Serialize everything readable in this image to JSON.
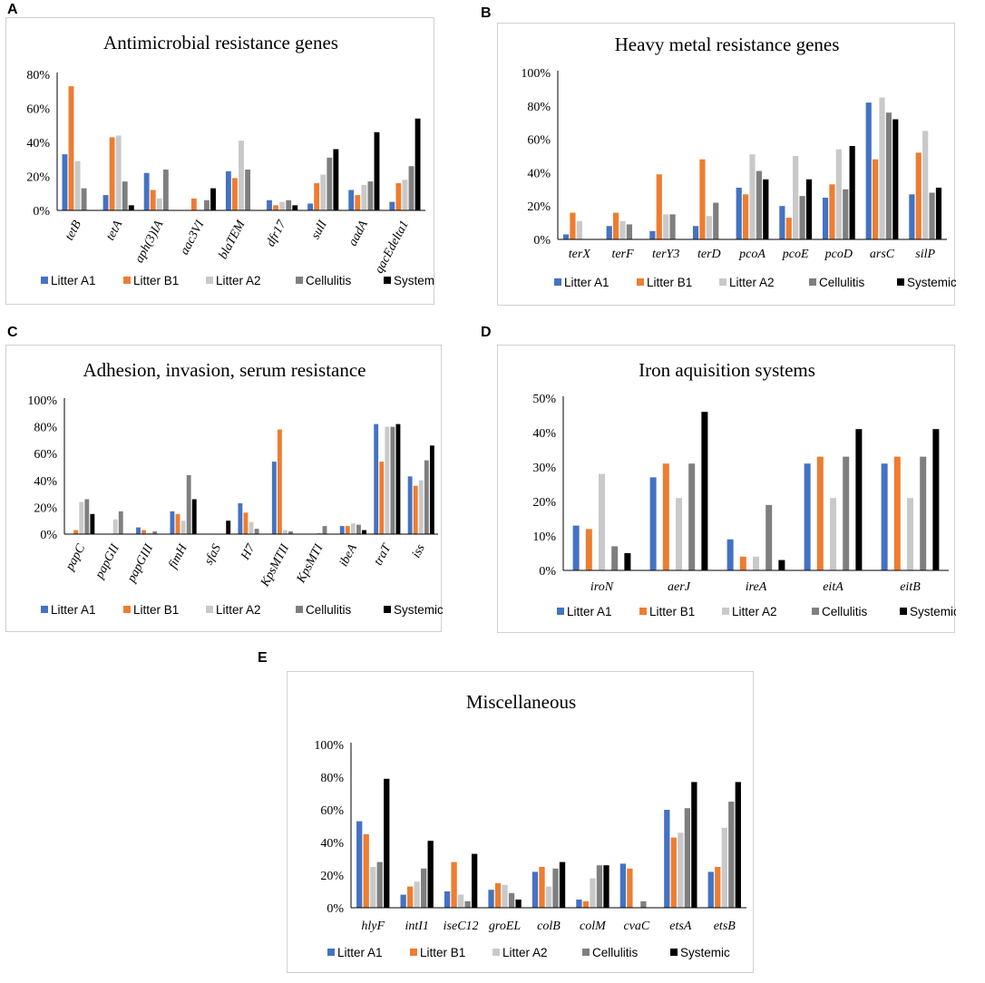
{
  "colors": {
    "Litter A1": "#4472C4",
    "Litter B1": "#ED7D31",
    "Litter A2": "#C9C9C9",
    "Cellulitis": "#7F7F7F",
    "Systemic": "#000000"
  },
  "panel_labels": [
    "A",
    "B",
    "C",
    "D",
    "E"
  ],
  "chart_data": [
    {
      "panel": "A",
      "type": "bar",
      "title": "Antimicrobial resistance genes",
      "ylim": [
        0,
        80
      ],
      "yticks": [
        "0%",
        "20%",
        "40%",
        "60%",
        "80%"
      ],
      "ytick_values": [
        0,
        20,
        40,
        60,
        80
      ],
      "categories": [
        "tetB",
        "tetA",
        "aph(3)IA",
        "aac3VI",
        "blaTEM",
        "dfr17",
        "sulI",
        "aadA",
        "qacEdelta1"
      ],
      "xlabel_rotated": true,
      "series": [
        {
          "name": "Litter A1",
          "values": [
            33,
            9,
            22,
            0,
            23,
            6,
            4,
            12,
            5
          ]
        },
        {
          "name": "Litter B1",
          "values": [
            73,
            43,
            12,
            7,
            19,
            3,
            16,
            9,
            16
          ]
        },
        {
          "name": "Litter A2",
          "values": [
            29,
            44,
            7,
            0,
            41,
            5,
            21,
            15,
            18
          ]
        },
        {
          "name": "Cellulitis",
          "values": [
            13,
            17,
            24,
            6,
            24,
            6,
            31,
            17,
            26
          ]
        },
        {
          "name": "Systemic",
          "values": [
            0,
            3,
            0,
            13,
            0,
            3,
            36,
            46,
            54
          ]
        }
      ],
      "legend": [
        "Litter A1",
        "Litter B1",
        "Litter A2",
        "Cellulitis",
        "Systemic"
      ]
    },
    {
      "panel": "B",
      "type": "bar",
      "title": "Heavy metal resistance genes",
      "ylim": [
        0,
        100
      ],
      "yticks": [
        "0%",
        "20%",
        "40%",
        "60%",
        "80%",
        "100%"
      ],
      "ytick_values": [
        0,
        20,
        40,
        60,
        80,
        100
      ],
      "categories": [
        "terX",
        "terF",
        "terY3",
        "terD",
        "pcoA",
        "pcoE",
        "pcoD",
        "arsC",
        "silP"
      ],
      "xlabel_rotated": false,
      "series": [
        {
          "name": "Litter A1",
          "values": [
            3,
            8,
            5,
            8,
            31,
            20,
            25,
            82,
            27
          ]
        },
        {
          "name": "Litter B1",
          "values": [
            16,
            16,
            39,
            48,
            27,
            13,
            33,
            48,
            52
          ]
        },
        {
          "name": "Litter A2",
          "values": [
            11,
            11,
            15,
            14,
            51,
            50,
            54,
            85,
            65
          ]
        },
        {
          "name": "Cellulitis",
          "values": [
            0,
            9,
            15,
            22,
            41,
            26,
            30,
            76,
            28
          ]
        },
        {
          "name": "Systemic",
          "values": [
            0,
            0,
            0,
            0,
            36,
            36,
            56,
            72,
            31
          ]
        }
      ],
      "legend": [
        "Litter A1",
        "Litter B1",
        "Litter A2",
        "Cellulitis",
        "Systemic"
      ]
    },
    {
      "panel": "C",
      "type": "bar",
      "title": "Adhesion, invasion, serum resistance",
      "ylim": [
        0,
        100
      ],
      "yticks": [
        "0%",
        "20%",
        "40%",
        "60%",
        "80%",
        "100%"
      ],
      "ytick_values": [
        0,
        20,
        40,
        60,
        80,
        100
      ],
      "categories": [
        "papC",
        "papGII",
        "papGIII",
        "fimH",
        "sfaS",
        "H7",
        "KpsMTII",
        "KpsMTI",
        "ibeA",
        "traT",
        "iss"
      ],
      "xlabel_rotated": true,
      "series": [
        {
          "name": "Litter A1",
          "values": [
            0,
            0,
            5,
            17,
            0,
            23,
            54,
            0,
            6,
            82,
            43
          ]
        },
        {
          "name": "Litter B1",
          "values": [
            3,
            0,
            3,
            15,
            0,
            16,
            78,
            0,
            6,
            54,
            36
          ]
        },
        {
          "name": "Litter A2",
          "values": [
            24,
            11,
            1,
            10,
            0,
            9,
            3,
            1,
            8,
            80,
            40
          ]
        },
        {
          "name": "Cellulitis",
          "values": [
            26,
            17,
            2,
            44,
            0,
            4,
            2,
            6,
            7,
            80,
            55
          ]
        },
        {
          "name": "Systemic",
          "values": [
            15,
            0,
            0,
            26,
            10,
            0,
            0,
            0,
            3,
            82,
            66
          ]
        }
      ],
      "legend": [
        "Litter A1",
        "Litter B1",
        "Litter A2",
        "Cellulitis",
        "Systemic"
      ]
    },
    {
      "panel": "D",
      "type": "bar",
      "title": "Iron aquisition systems",
      "ylim": [
        0,
        50
      ],
      "yticks": [
        "0%",
        "10%",
        "20%",
        "30%",
        "40%",
        "50%"
      ],
      "ytick_values": [
        0,
        10,
        20,
        30,
        40,
        50
      ],
      "categories": [
        "iroN",
        "aerJ",
        "ireA",
        "eitA",
        "eitB"
      ],
      "xlabel_rotated": false,
      "series": [
        {
          "name": "Litter A1",
          "values": [
            13,
            27,
            9,
            31,
            31
          ]
        },
        {
          "name": "Litter B1",
          "values": [
            12,
            31,
            4,
            33,
            33
          ]
        },
        {
          "name": "Litter A2",
          "values": [
            28,
            21,
            4,
            21,
            21
          ]
        },
        {
          "name": "Cellulitis",
          "values": [
            7,
            31,
            19,
            33,
            33
          ]
        },
        {
          "name": "Systemic",
          "values": [
            5,
            46,
            3,
            41,
            41
          ]
        }
      ],
      "legend": [
        "Litter A1",
        "Litter B1",
        "Litter A2",
        "Cellulitis",
        "Systemic"
      ]
    },
    {
      "panel": "E",
      "type": "bar",
      "title": "Miscellaneous",
      "ylim": [
        0,
        100
      ],
      "yticks": [
        "0%",
        "20%",
        "40%",
        "60%",
        "80%",
        "100%"
      ],
      "ytick_values": [
        0,
        20,
        40,
        60,
        80,
        100
      ],
      "categories": [
        "hlyF",
        "intI1",
        "iseC12",
        "groEL",
        "colB",
        "colM",
        "cvaC",
        "etsA",
        "etsB"
      ],
      "xlabel_rotated": false,
      "series": [
        {
          "name": "Litter A1",
          "values": [
            53,
            8,
            10,
            11,
            22,
            5,
            27,
            60,
            22
          ]
        },
        {
          "name": "Litter B1",
          "values": [
            45,
            13,
            28,
            15,
            25,
            4,
            24,
            43,
            25
          ]
        },
        {
          "name": "Litter A2",
          "values": [
            25,
            16,
            8,
            14,
            13,
            18,
            0,
            46,
            49
          ]
        },
        {
          "name": "Cellulitis",
          "values": [
            28,
            24,
            4,
            9,
            24,
            26,
            4,
            61,
            65
          ]
        },
        {
          "name": "Systemic",
          "values": [
            79,
            41,
            33,
            5,
            28,
            26,
            0,
            77,
            77
          ]
        }
      ],
      "legend": [
        "Litter A1",
        "Litter B1",
        "Litter A2",
        "Cellulitis",
        "Systemic"
      ]
    }
  ]
}
